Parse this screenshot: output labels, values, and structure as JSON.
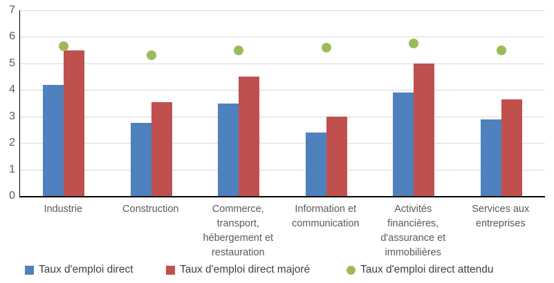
{
  "chart_data": {
    "type": "bar",
    "title": "",
    "xlabel": "",
    "ylabel": "",
    "ylim": [
      0,
      7
    ],
    "ytick_step": 1,
    "ytick_labels": [
      "0",
      "1",
      "2",
      "3",
      "4",
      "5",
      "6",
      "7"
    ],
    "grid": true,
    "legend_position": "bottom",
    "categories": [
      "Industrie",
      "Construction",
      "Commerce, transport, hébergement et restauration",
      "Information et communication",
      "Activités financières, d'assurance et immobilières",
      "Services aux entreprises"
    ],
    "series": [
      {
        "name": "Taux d'emploi direct",
        "mark": "bar",
        "color": "#4e81bd",
        "values": [
          4.2,
          2.75,
          3.5,
          2.4,
          3.9,
          2.9
        ]
      },
      {
        "name": "Taux d'emploi direct majoré",
        "mark": "bar",
        "color": "#c0504d",
        "values": [
          5.5,
          3.55,
          4.5,
          3.0,
          5.0,
          3.65
        ]
      },
      {
        "name": "Taux d'emploi direct attendu",
        "mark": "point",
        "color": "#9bbb59",
        "values": [
          5.65,
          5.3,
          5.5,
          5.6,
          5.75,
          5.5
        ]
      }
    ],
    "colors": {
      "grid": "#d9d9d9",
      "axis": "#000000",
      "tick_label": "#595959",
      "category_label": "#595959",
      "legend_label": "#404040"
    }
  }
}
